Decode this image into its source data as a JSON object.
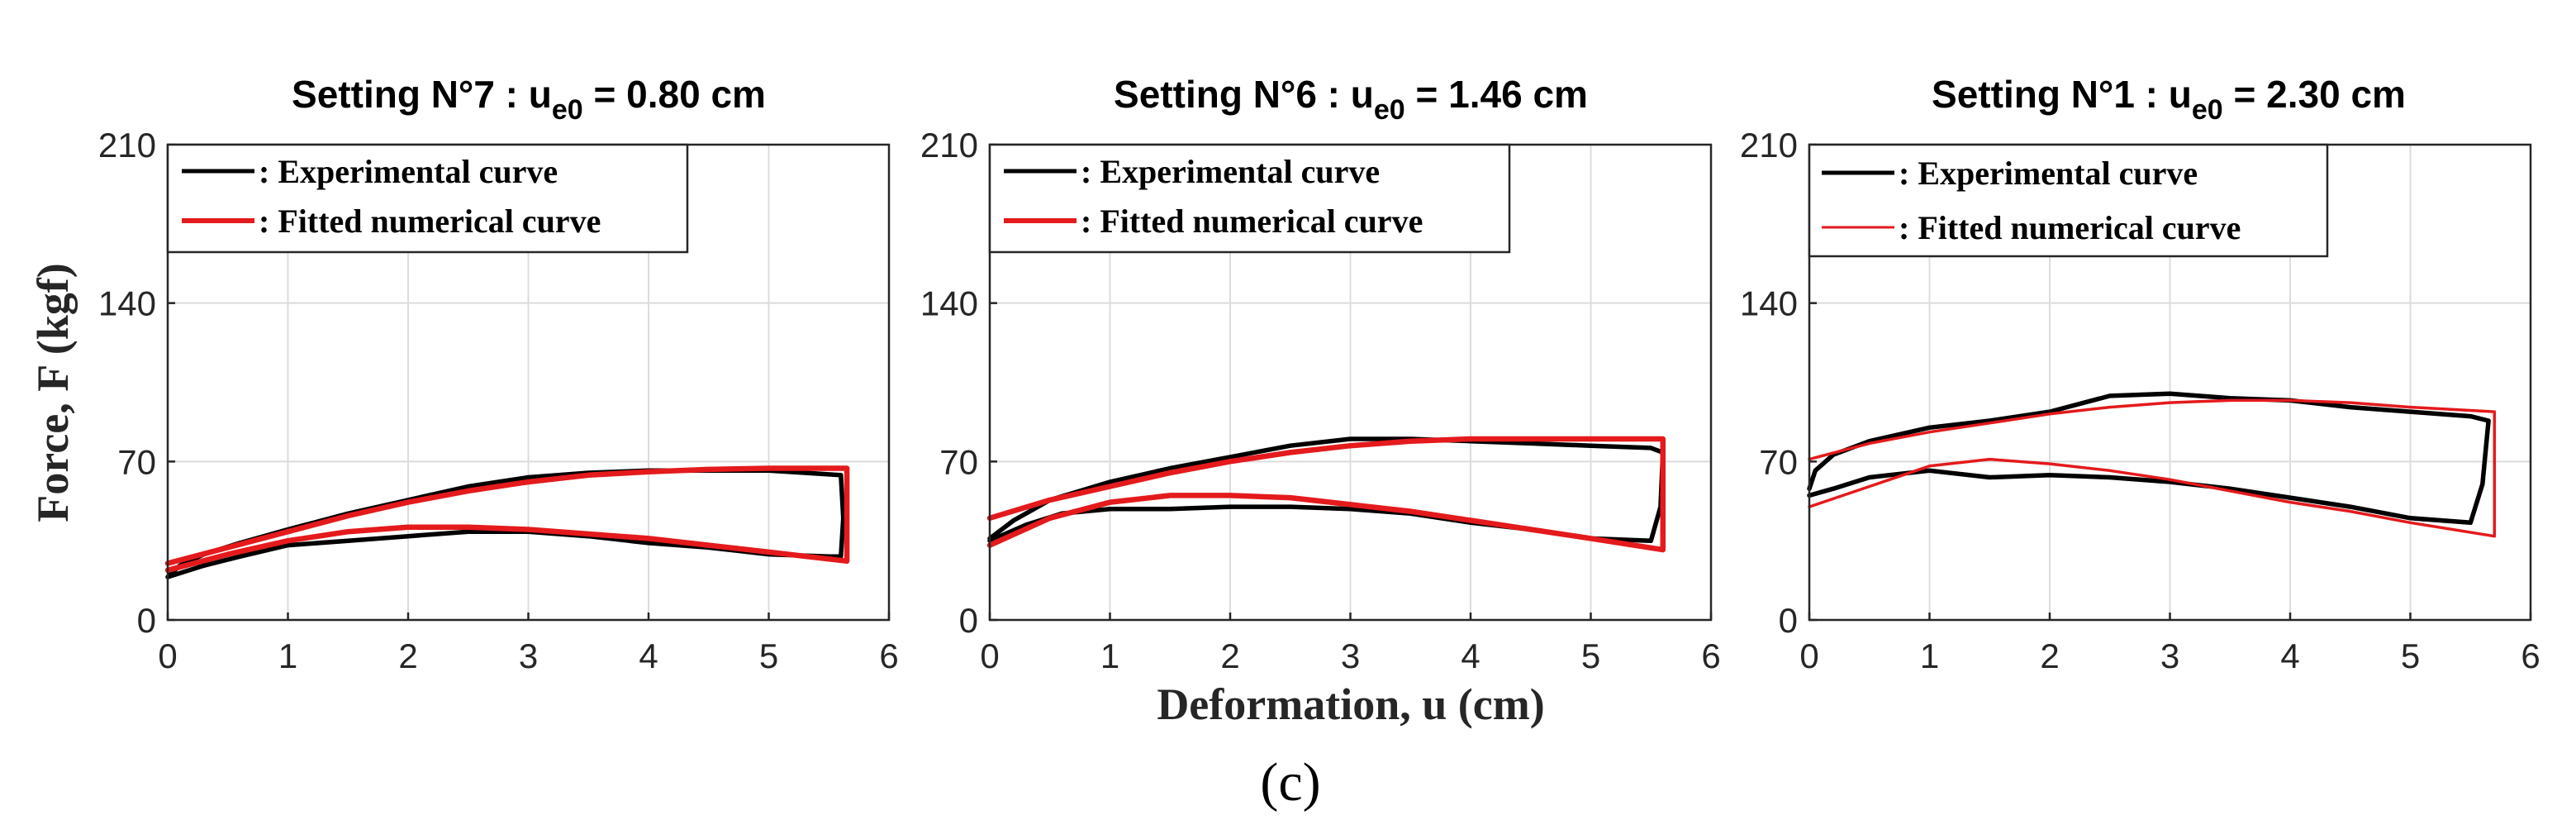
{
  "figure": {
    "caption": "(c)",
    "shared_xlabel": "Deformation, u (cm)",
    "shared_ylabel": "Force, F (kgf)"
  },
  "chart_data": [
    {
      "type": "line",
      "title": {
        "prefix": "Setting N°7 : u",
        "subscript": "e0",
        "suffix": " = 0.80 cm"
      },
      "xlim": [
        0,
        6
      ],
      "ylim": [
        0,
        210
      ],
      "xticks": [
        0,
        1,
        2,
        3,
        4,
        5,
        6
      ],
      "yticks": [
        0,
        70,
        140,
        210
      ],
      "grid": true,
      "legend_position": "top-left",
      "series": [
        {
          "name": ": Experimental curve",
          "color": "#000000",
          "x": [
            0.0,
            0.1,
            0.3,
            0.6,
            1.0,
            1.5,
            2.0,
            2.5,
            3.0,
            3.5,
            4.0,
            4.5,
            5.0,
            5.3,
            5.6,
            5.62,
            5.6,
            5.5,
            5.0,
            4.5,
            4.0,
            3.5,
            3.0,
            2.5,
            2.0,
            1.5,
            1.0,
            0.6,
            0.3,
            0.0
          ],
          "y": [
            19,
            24,
            29,
            34,
            40,
            47,
            53,
            59,
            63,
            65,
            66,
            66,
            66,
            65,
            64,
            45,
            28,
            28,
            29,
            32,
            34,
            37,
            39,
            39,
            37,
            35,
            33,
            28,
            24,
            19
          ]
        },
        {
          "name": ": Fitted numerical curve",
          "color": "#e41a1c",
          "x": [
            0.0,
            0.5,
            1.0,
            1.5,
            2.0,
            2.5,
            3.0,
            3.5,
            4.0,
            4.5,
            5.0,
            5.65,
            5.65,
            5.0,
            4.5,
            4.0,
            3.5,
            3.0,
            2.5,
            2.0,
            1.5,
            1.0,
            0.5,
            0.0
          ],
          "y": [
            25,
            32,
            39,
            46,
            52,
            57,
            61,
            64,
            65.5,
            66.5,
            67,
            67,
            26,
            30,
            33,
            36,
            38,
            40,
            41,
            41,
            39,
            35,
            29,
            22
          ]
        }
      ]
    },
    {
      "type": "line",
      "title": {
        "prefix": "Setting N°6 : u",
        "subscript": "e0",
        "suffix": " = 1.46 cm"
      },
      "xlim": [
        0,
        6
      ],
      "ylim": [
        0,
        210
      ],
      "xticks": [
        0,
        1,
        2,
        3,
        4,
        5,
        6
      ],
      "yticks": [
        0,
        70,
        140,
        210
      ],
      "grid": true,
      "legend_position": "top-left",
      "series": [
        {
          "name": ": Experimental curve",
          "color": "#000000",
          "x": [
            0.0,
            0.2,
            0.5,
            1.0,
            1.5,
            2.0,
            2.5,
            3.0,
            3.5,
            4.0,
            4.5,
            5.0,
            5.5,
            5.6,
            5.58,
            5.5,
            5.0,
            4.5,
            4.0,
            3.5,
            3.0,
            2.5,
            2.0,
            1.5,
            1.0,
            0.6,
            0.3,
            0.0
          ],
          "y": [
            36,
            44,
            53,
            61,
            67,
            72,
            77,
            80,
            80,
            79,
            78,
            77,
            76,
            74,
            50,
            35,
            36,
            40,
            43,
            47,
            49,
            50,
            50,
            49,
            49,
            47,
            42,
            35
          ]
        },
        {
          "name": ": Fitted numerical curve",
          "color": "#e41a1c",
          "x": [
            0.0,
            0.5,
            1.0,
            1.5,
            2.0,
            2.5,
            3.0,
            3.5,
            4.0,
            4.5,
            5.0,
            5.6,
            5.6,
            5.0,
            4.5,
            4.0,
            3.5,
            3.0,
            2.5,
            2.0,
            1.5,
            1.0,
            0.5,
            0.0
          ],
          "y": [
            45,
            53,
            59,
            65,
            70,
            74,
            77,
            79,
            80,
            80,
            80,
            80,
            31,
            36,
            40,
            44,
            48,
            51,
            54,
            55,
            55,
            52,
            45,
            33
          ]
        }
      ]
    },
    {
      "type": "line",
      "title": {
        "prefix": "Setting N°1  : u",
        "subscript": "e0",
        "suffix": " = 2.30 cm"
      },
      "xlim": [
        0,
        6
      ],
      "ylim": [
        0,
        210
      ],
      "xticks": [
        0,
        1,
        2,
        3,
        4,
        5,
        6
      ],
      "yticks": [
        0,
        70,
        140,
        210
      ],
      "grid": true,
      "legend_position": "top-left",
      "series": [
        {
          "name": ": Experimental curve",
          "color": "#000000",
          "x": [
            0.0,
            0.05,
            0.2,
            0.5,
            1.0,
            1.5,
            2.0,
            2.5,
            3.0,
            3.5,
            4.0,
            4.5,
            5.0,
            5.5,
            5.65,
            5.6,
            5.5,
            5.0,
            4.5,
            4.0,
            3.5,
            3.0,
            2.5,
            2.0,
            1.5,
            1.0,
            0.5,
            0.2,
            0.0
          ],
          "y": [
            58,
            66,
            73,
            79,
            85,
            88,
            92,
            99,
            100,
            98,
            97,
            94,
            92,
            90,
            88,
            60,
            43,
            45,
            50,
            54,
            58,
            61,
            63,
            64,
            63,
            66,
            63,
            58,
            55
          ]
        },
        {
          "name": ": Fitted numerical curve",
          "color": "#e41a1c",
          "x": [
            0.0,
            0.5,
            1.0,
            1.5,
            2.0,
            2.5,
            3.0,
            3.5,
            4.0,
            4.5,
            5.0,
            5.7,
            5.7,
            5.0,
            4.5,
            4.0,
            3.5,
            3.0,
            2.5,
            2.0,
            1.5,
            1.0,
            0.5,
            0.0
          ],
          "y": [
            71,
            78,
            83,
            87,
            91,
            94,
            96,
            97,
            97,
            96,
            94,
            92,
            37,
            43,
            48,
            52,
            57,
            62,
            66,
            69,
            71,
            68,
            59,
            50
          ]
        }
      ]
    }
  ]
}
